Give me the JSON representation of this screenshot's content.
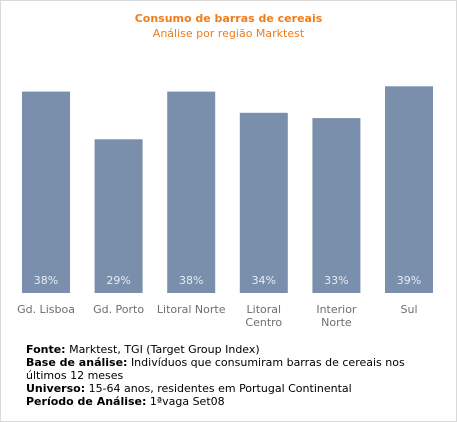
{
  "chart_data": {
    "type": "bar",
    "title": "Consumo de barras de cereais",
    "subtitle": "Análise por região Marktest",
    "categories": [
      [
        "Gd. Lisboa"
      ],
      [
        "Gd. Porto"
      ],
      [
        "Litoral Norte"
      ],
      [
        "Litoral",
        "Centro"
      ],
      [
        "Interior",
        "Norte"
      ],
      [
        "Sul"
      ]
    ],
    "values": [
      38,
      29,
      38,
      34,
      33,
      39
    ],
    "value_labels": [
      "38%",
      "29%",
      "38%",
      "34%",
      "33%",
      "39%"
    ],
    "ylim": [
      0,
      40
    ],
    "grid": false,
    "legend": "none",
    "colors": {
      "bar": "#7a8fac",
      "bar_label": "#e6ecf3",
      "category_label": "#6e6e6e",
      "title": "#f07c1a"
    }
  },
  "notes": {
    "source_label": "Fonte:",
    "source_text": "Marktest, TGI (Target Group Index)",
    "base_label": "Base de análise:",
    "base_text": "Indivíduos que consumiram barras de cereais nos últimos 12 meses",
    "universe_label": "Universo:",
    "universe_text": "15-64 anos, residentes em Portugal Continental",
    "period_label": "Período de Análise:",
    "period_text": "1ªvaga Set08"
  }
}
